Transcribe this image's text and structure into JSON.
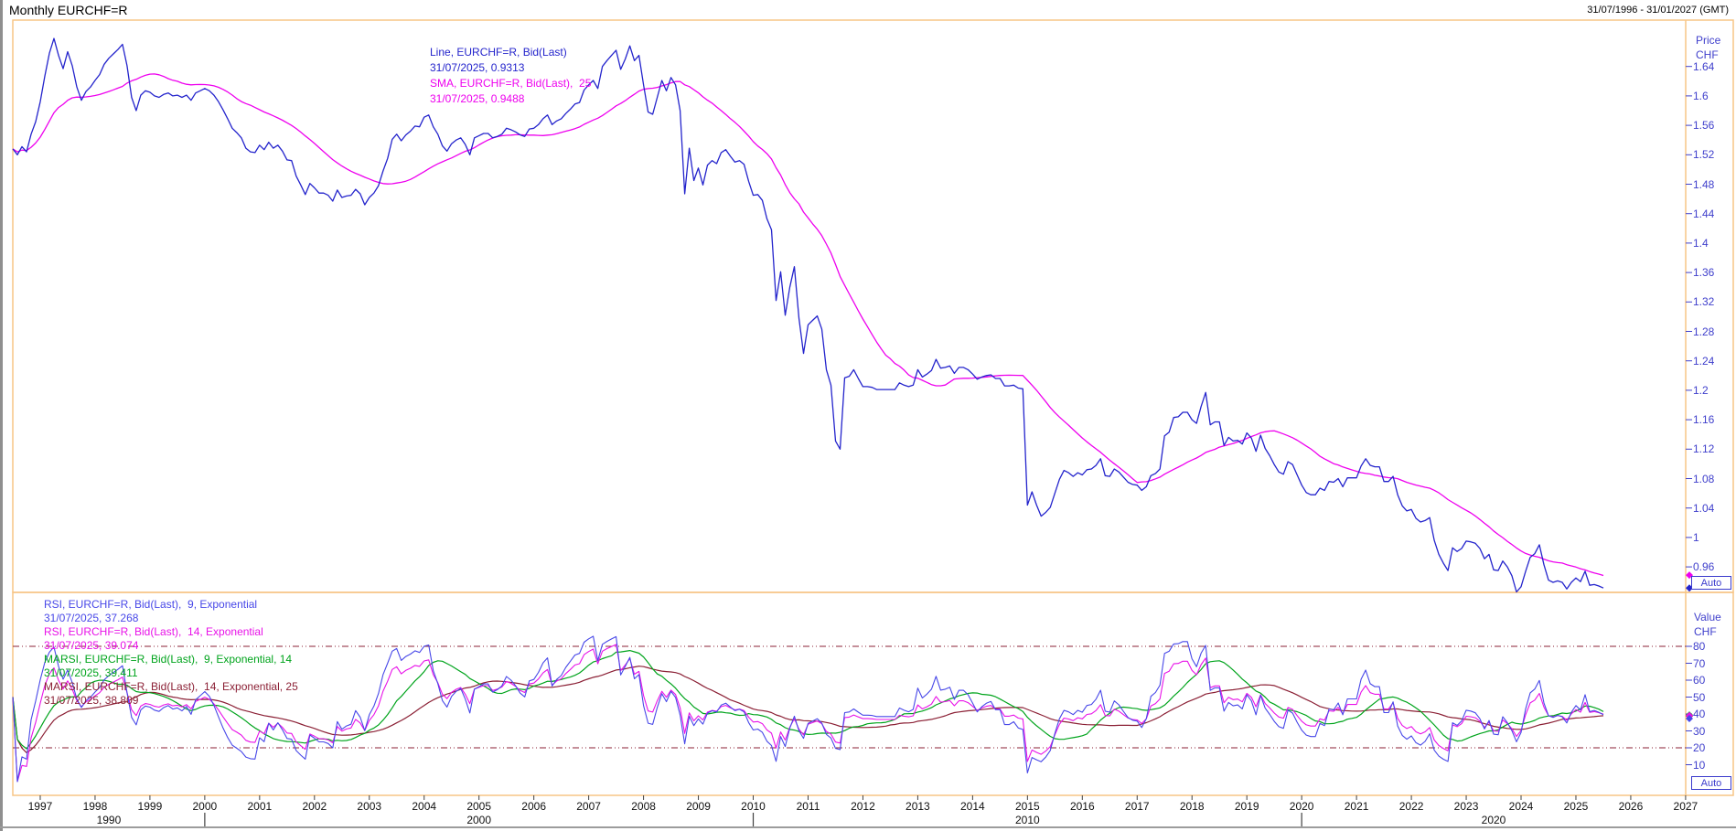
{
  "window": {
    "title": "Monthly EURCHF=R",
    "date_range": "31/07/1996 - 31/01/2027 (GMT)"
  },
  "colors": {
    "panel_border": "#f7c586",
    "price_line": "#2424cc",
    "sma_line": "#ee00ee",
    "rsi9_line": "#4848e8",
    "rsi14_line": "#e812e8",
    "marsi914_line": "#00a41c",
    "marsi1425_line": "#8b2035",
    "axis_text": "#4040cc",
    "level_line": "#8b2035",
    "year_text": "#111111"
  },
  "main_panel": {
    "legend": [
      {
        "text": "Line, EURCHF=R, Bid(Last)",
        "color": "#2424cc"
      },
      {
        "text": "31/07/2025, 0.9313",
        "color": "#2424cc"
      },
      {
        "text": "SMA, EURCHF=R, Bid(Last),  25",
        "color": "#ee00ee"
      },
      {
        "text": "31/07/2025, 0.9488",
        "color": "#ee00ee"
      }
    ],
    "axis": {
      "header": [
        "Price",
        "CHF"
      ],
      "tick_labels": [
        "1.64",
        "1.6",
        "1.56",
        "1.52",
        "1.48",
        "1.44",
        "1.4",
        "1.36",
        "1.32",
        "1.28",
        "1.24",
        "1.2",
        "1.16",
        "1.12",
        "1.08",
        "1.04",
        "1",
        "0.96"
      ],
      "tick_values": [
        1.64,
        1.6,
        1.56,
        1.52,
        1.48,
        1.44,
        1.4,
        1.36,
        1.32,
        1.28,
        1.24,
        1.2,
        1.16,
        1.12,
        1.08,
        1.04,
        1.0,
        0.96
      ]
    },
    "auto_label": "Auto",
    "markers": [
      {
        "name": "sma-marker",
        "color": "#ee00ee",
        "value": 0.9488
      },
      {
        "name": "price-marker",
        "color": "#2424cc",
        "value": 0.9313
      }
    ]
  },
  "rsi_panel": {
    "legend": [
      {
        "text": "RSI, EURCHF=R, Bid(Last),  9, Exponential",
        "color": "#4848e8"
      },
      {
        "text": "31/07/2025, 37.268",
        "color": "#4848e8"
      },
      {
        "text": "RSI, EURCHF=R, Bid(Last),  14, Exponential",
        "color": "#e812e8"
      },
      {
        "text": "31/07/2025, 39.074",
        "color": "#e812e8"
      },
      {
        "text": "MARSI, EURCHF=R, Bid(Last),  9, Exponential, 14",
        "color": "#00a41c"
      },
      {
        "text": "31/07/2025, 39.411",
        "color": "#00a41c"
      },
      {
        "text": "MARSI, EURCHF=R, Bid(Last),  14, Exponential, 25",
        "color": "#8b2035"
      },
      {
        "text": "31/07/2025, 38.809",
        "color": "#8b2035"
      }
    ],
    "axis": {
      "header": [
        "Value",
        "CHF"
      ],
      "tick_labels": [
        "80",
        "70",
        "60",
        "50",
        "40",
        "30",
        "20",
        "10"
      ],
      "tick_values": [
        80,
        70,
        60,
        50,
        40,
        30,
        20,
        10
      ]
    },
    "auto_label": "Auto",
    "levels": [
      80,
      20
    ],
    "markers": [
      {
        "name": "marsi1425-marker",
        "color": "#8b2035",
        "value": 38.809
      },
      {
        "name": "marsi914-marker",
        "color": "#00a41c",
        "value": 39.411
      },
      {
        "name": "rsi14-marker",
        "color": "#e812e8",
        "value": 39.074
      },
      {
        "name": "rsi9-marker",
        "color": "#4848e8",
        "value": 37.268
      }
    ]
  },
  "x_axis": {
    "years": [
      1997,
      1998,
      1999,
      2000,
      2001,
      2002,
      2003,
      2004,
      2005,
      2006,
      2007,
      2008,
      2009,
      2010,
      2011,
      2012,
      2013,
      2014,
      2015,
      2016,
      2017,
      2018,
      2019,
      2020,
      2021,
      2022,
      2023,
      2024,
      2025,
      2026,
      2027
    ],
    "decade_labels": [
      "1990",
      "2000",
      "2010",
      "2020"
    ],
    "decade_tick_years": [
      2000,
      2010,
      2020
    ]
  },
  "chart_data": {
    "type": "line",
    "title": "Monthly EURCHF=R",
    "x_start": "1996-07-31",
    "x_end_axis": "2027-01-31",
    "freq": "monthly",
    "panels": [
      {
        "name": "price",
        "ylabel": "Price CHF",
        "ylim": [
          0.924,
          1.704
        ],
        "series": [
          {
            "name": "Line, EURCHF=R, Bid(Last)",
            "color": "#2424cc",
            "last_point": {
              "date": "31/07/2025",
              "value": 0.9313
            },
            "values": [
              1.528,
              1.52,
              1.531,
              1.524,
              1.548,
              1.565,
              1.592,
              1.627,
              1.658,
              1.678,
              1.655,
              1.637,
              1.66,
              1.641,
              1.612,
              1.594,
              1.606,
              1.612,
              1.621,
              1.629,
              1.643,
              1.651,
              1.657,
              1.663,
              1.67,
              1.641,
              1.598,
              1.58,
              1.601,
              1.607,
              1.605,
              1.6,
              1.598,
              1.602,
              1.604,
              1.6,
              1.601,
              1.598,
              1.601,
              1.594,
              1.604,
              1.607,
              1.61,
              1.607,
              1.601,
              1.592,
              1.581,
              1.569,
              1.556,
              1.55,
              1.543,
              1.529,
              1.524,
              1.523,
              1.533,
              1.527,
              1.537,
              1.529,
              1.533,
              1.525,
              1.513,
              1.512,
              1.491,
              1.479,
              1.466,
              1.481,
              1.475,
              1.468,
              1.468,
              1.465,
              1.457,
              1.472,
              1.462,
              1.464,
              1.465,
              1.473,
              1.467,
              1.452,
              1.462,
              1.468,
              1.478,
              1.498,
              1.515,
              1.541,
              1.548,
              1.539,
              1.547,
              1.552,
              1.559,
              1.558,
              1.571,
              1.574,
              1.558,
              1.548,
              1.532,
              1.525,
              1.535,
              1.54,
              1.543,
              1.534,
              1.52,
              1.543,
              1.546,
              1.549,
              1.549,
              1.543,
              1.545,
              1.548,
              1.556,
              1.554,
              1.551,
              1.547,
              1.545,
              1.555,
              1.556,
              1.561,
              1.569,
              1.574,
              1.561,
              1.566,
              1.569,
              1.576,
              1.582,
              1.589,
              1.591,
              1.608,
              1.615,
              1.621,
              1.61,
              1.64,
              1.648,
              1.655,
              1.662,
              1.636,
              1.65,
              1.668,
              1.648,
              1.655,
              1.615,
              1.578,
              1.575,
              1.598,
              1.621,
              1.607,
              1.625,
              1.615,
              1.58,
              1.467,
              1.529,
              1.485,
              1.502,
              1.479,
              1.506,
              1.512,
              1.508,
              1.523,
              1.527,
              1.518,
              1.51,
              1.512,
              1.507,
              1.484,
              1.465,
              1.466,
              1.458,
              1.433,
              1.418,
              1.322,
              1.361,
              1.302,
              1.34,
              1.368,
              1.298,
              1.25,
              1.289,
              1.295,
              1.301,
              1.283,
              1.228,
              1.207,
              1.131,
              1.12,
              1.217,
              1.219,
              1.228,
              1.216,
              1.205,
              1.205,
              1.204,
              1.201,
              1.201,
              1.201,
              1.201,
              1.201,
              1.21,
              1.207,
              1.205,
              1.207,
              1.228,
              1.218,
              1.222,
              1.227,
              1.242,
              1.23,
              1.231,
              1.233,
              1.223,
              1.231,
              1.231,
              1.228,
              1.222,
              1.215,
              1.218,
              1.22,
              1.221,
              1.216,
              1.216,
              1.206,
              1.206,
              1.207,
              1.203,
              1.202,
              1.044,
              1.062,
              1.044,
              1.029,
              1.034,
              1.041,
              1.06,
              1.079,
              1.091,
              1.088,
              1.083,
              1.088,
              1.085,
              1.092,
              1.093,
              1.098,
              1.107,
              1.084,
              1.083,
              1.093,
              1.089,
              1.082,
              1.075,
              1.072,
              1.071,
              1.064,
              1.069,
              1.084,
              1.087,
              1.093,
              1.138,
              1.143,
              1.163,
              1.164,
              1.17,
              1.17,
              1.16,
              1.155,
              1.178,
              1.197,
              1.153,
              1.157,
              1.157,
              1.125,
              1.136,
              1.131,
              1.132,
              1.127,
              1.142,
              1.135,
              1.117,
              1.139,
              1.121,
              1.111,
              1.099,
              1.089,
              1.086,
              1.103,
              1.099,
              1.085,
              1.071,
              1.061,
              1.058,
              1.058,
              1.067,
              1.064,
              1.076,
              1.075,
              1.08,
              1.069,
              1.081,
              1.081,
              1.081,
              1.097,
              1.107,
              1.098,
              1.096,
              1.096,
              1.076,
              1.076,
              1.083,
              1.058,
              1.043,
              1.036,
              1.038,
              1.026,
              1.021,
              1.023,
              1.027,
              0.996,
              0.977,
              0.965,
              0.955,
              0.986,
              0.981,
              0.985,
              0.995,
              0.994,
              0.992,
              0.985,
              0.971,
              0.977,
              0.956,
              0.955,
              0.968,
              0.96,
              0.948,
              0.926,
              0.933,
              0.954,
              0.973,
              0.978,
              0.99,
              0.963,
              0.942,
              0.939,
              0.941,
              0.939,
              0.93,
              0.939,
              0.945,
              0.94,
              0.954,
              0.935,
              0.936,
              0.934,
              0.9313
            ]
          },
          {
            "name": "SMA, EURCHF=R, Bid(Last), 25",
            "color": "#ee00ee",
            "derived": "sma",
            "period": 25,
            "source": "price",
            "last_point": {
              "date": "31/07/2025",
              "value": 0.9488
            }
          }
        ]
      },
      {
        "name": "value",
        "ylabel": "Value CHF",
        "ylim": [
          -8,
          112
        ],
        "overbought_oversold_levels": [
          80,
          20
        ],
        "series": [
          {
            "name": "RSI, EURCHF=R, Bid(Last), 9, Exponential",
            "color": "#4848e8",
            "derived": "rsi",
            "period": 9,
            "last_point": {
              "date": "31/07/2025",
              "value": 37.268
            }
          },
          {
            "name": "RSI, EURCHF=R, Bid(Last), 14, Exponential",
            "color": "#e812e8",
            "derived": "rsi",
            "period": 14,
            "last_point": {
              "date": "31/07/2025",
              "value": 39.074
            }
          },
          {
            "name": "MARSI, EURCHF=R, Bid(Last), 9, Exponential, 14",
            "color": "#00a41c",
            "derived": "marsi",
            "rsi_period": 9,
            "ma_period": 14,
            "last_point": {
              "date": "31/07/2025",
              "value": 39.411
            }
          },
          {
            "name": "MARSI, EURCHF=R, Bid(Last), 14, Exponential, 25",
            "color": "#8b2035",
            "derived": "marsi",
            "rsi_period": 14,
            "ma_period": 25,
            "last_point": {
              "date": "31/07/2025",
              "value": 38.809
            }
          }
        ]
      }
    ]
  }
}
